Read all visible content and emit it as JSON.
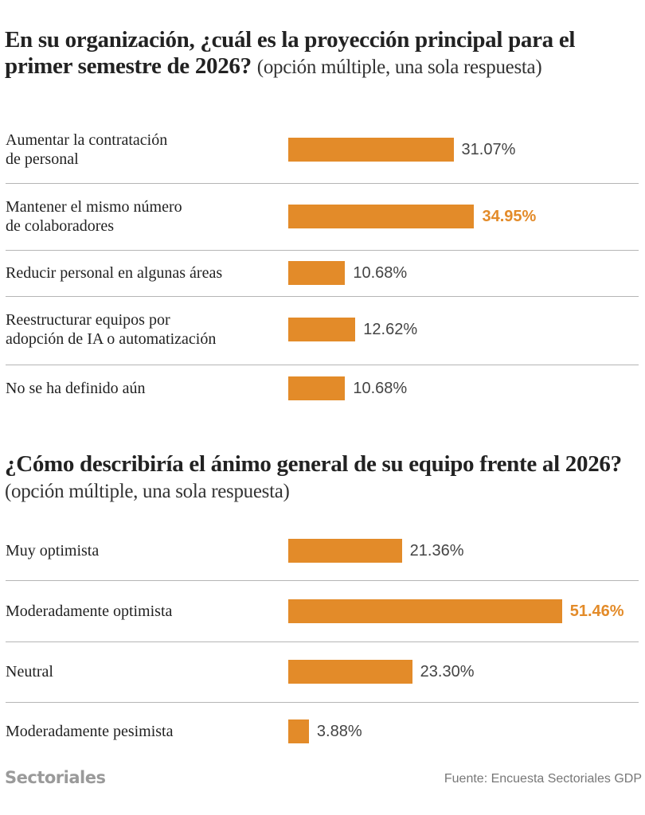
{
  "chart_data": [
    {
      "type": "bar",
      "orientation": "horizontal",
      "title": "En su organización, ¿cuál es la proyección principal para el primer semestre de 2026?",
      "subtitle": "(opción múltiple, una sola respuesta)",
      "categories": [
        "Aumentar la contratación de personal",
        "Mantener el mismo número de colaboradores",
        "Reducir personal en algunas áreas",
        "Reestructurar equipos por adopción de IA o automatización",
        "No se ha definido aún"
      ],
      "label_lines": [
        [
          "Aumentar la contratación",
          "de personal"
        ],
        [
          "Mantener el mismo número",
          "de colaboradores"
        ],
        [
          "Reducir personal en algunas áreas"
        ],
        [
          "Reestructurar equipos por",
          "adopción de IA o automatización"
        ],
        [
          "No se ha definido aún"
        ]
      ],
      "values": [
        31.07,
        34.95,
        10.68,
        12.62,
        10.68
      ],
      "value_labels": [
        "31.07%",
        "34.95%",
        "10.68%",
        "12.62%",
        "10.68%"
      ],
      "highlight_index": 1,
      "unit": "%",
      "xlim": [
        0,
        55
      ],
      "grid": false
    },
    {
      "type": "bar",
      "orientation": "horizontal",
      "title": "¿Cómo describiría el ánimo general de su equipo frente al 2026?",
      "subtitle": "(opción múltiple, una sola respuesta)",
      "categories": [
        "Muy optimista",
        "Moderadamente optimista",
        "Neutral",
        "Moderadamente pesimista"
      ],
      "label_lines": [
        [
          "Muy optimista"
        ],
        [
          "Moderadamente optimista"
        ],
        [
          "Neutral"
        ],
        [
          "Moderadamente pesimista"
        ]
      ],
      "values": [
        21.36,
        51.46,
        23.3,
        3.88
      ],
      "value_labels": [
        "21.36%",
        "51.46%",
        "23.30%",
        "3.88%"
      ],
      "highlight_index": 1,
      "unit": "%",
      "xlim": [
        0,
        55
      ],
      "grid": false
    }
  ],
  "colors": {
    "bar": "#e38b29",
    "highlight_text": "#e38b29",
    "value_text": "#444444",
    "divider": "#b5b5b5"
  },
  "titles": {
    "q1_main": "En su organización, ¿cuál es la proyección principal para el primer semestre de 2026?",
    "q1_sub": "(opción múltiple, una sola respuesta)",
    "q2_main": "¿Cómo describiría el ánimo general de su equipo frente al 2026?",
    "q2_sub": "(opción múltiple, una sola respuesta)"
  },
  "footer": {
    "brand": "Sectoriales",
    "source": "Fuente: Encuesta Sectoriales GDP"
  }
}
